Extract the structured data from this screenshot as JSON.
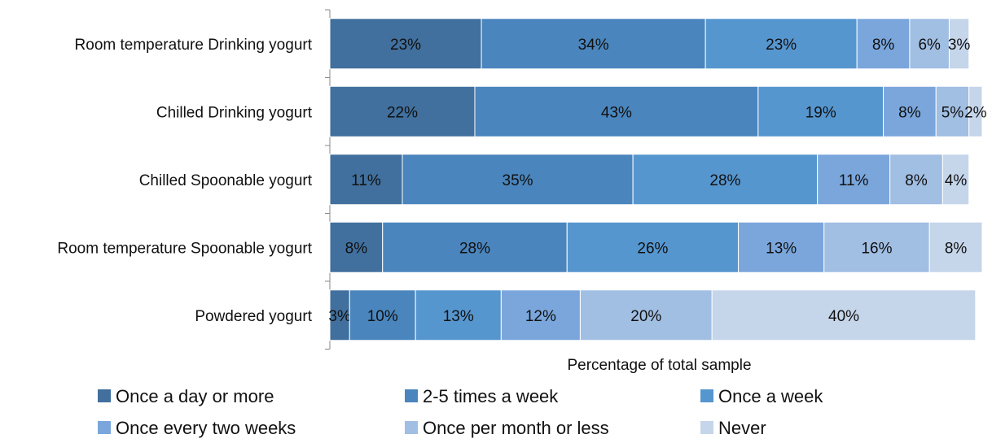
{
  "chart_data": {
    "type": "bar",
    "orientation": "horizontal",
    "stacked": true,
    "xlabel": "Percentage of total sample",
    "ylabel": "",
    "xlim": [
      0,
      100
    ],
    "grid": false,
    "legend_position": "bottom",
    "categories": [
      "Room temperature Drinking yogurt",
      "Chilled Drinking yogurt",
      "Chilled Spoonable yogurt",
      "Room temperature  Spoonable yogurt",
      "Powdered yogurt"
    ],
    "series": [
      {
        "name": "Once a day or more",
        "color": "#41709e",
        "values": [
          23,
          22,
          11,
          8,
          3
        ]
      },
      {
        "name": "2-5 times a week",
        "color": "#4a85bd",
        "values": [
          34,
          43,
          35,
          28,
          10
        ]
      },
      {
        "name": "Once a week",
        "color": "#5696cf",
        "values": [
          23,
          19,
          28,
          26,
          13
        ]
      },
      {
        "name": "Once every two weeks",
        "color": "#7aa6dc",
        "values": [
          8,
          8,
          11,
          13,
          12
        ]
      },
      {
        "name": "Once per month or less",
        "color": "#a1bee3",
        "values": [
          6,
          5,
          8,
          16,
          20
        ]
      },
      {
        "name": "Never",
        "color": "#c5d5ea",
        "values": [
          3,
          2,
          4,
          8,
          40
        ]
      }
    ],
    "value_suffix": "%"
  }
}
